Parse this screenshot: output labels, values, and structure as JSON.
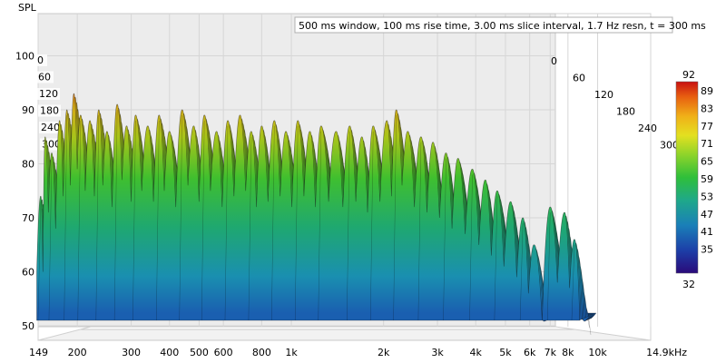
{
  "chart_data": {
    "type": "waterfall",
    "title": "",
    "ylabel": "SPL",
    "info": "500 ms window, 100 ms rise time, 3.00 ms slice interval, 1.7 Hz resn, t = 300 ms",
    "y_ticks": [
      "100",
      "90",
      "80",
      "70",
      "60",
      "50"
    ],
    "y_range": [
      47,
      101
    ],
    "x_range": [
      149,
      14900
    ],
    "x_scale": "log",
    "x_tick_labels": [
      {
        "f": 149,
        "label": "149"
      },
      {
        "f": 200,
        "label": "200"
      },
      {
        "f": 300,
        "label": "300"
      },
      {
        "f": 400,
        "label": "400"
      },
      {
        "f": 500,
        "label": "500"
      },
      {
        "f": 600,
        "label": "600"
      },
      {
        "f": 800,
        "label": "800"
      },
      {
        "f": 1000,
        "label": "1k"
      },
      {
        "f": 2000,
        "label": "2k"
      },
      {
        "f": 3000,
        "label": "3k"
      },
      {
        "f": 4000,
        "label": "4k"
      },
      {
        "f": 5000,
        "label": "5k"
      },
      {
        "f": 6000,
        "label": "6k"
      },
      {
        "f": 7000,
        "label": "7k"
      },
      {
        "f": 8000,
        "label": "8k"
      },
      {
        "f": 10000,
        "label": "10k"
      },
      {
        "f": 14900,
        "label": "14.9kHz"
      }
    ],
    "time_ticks_ms": [
      "0",
      "60",
      "120",
      "180",
      "240",
      "300"
    ],
    "time_range_ms": [
      0,
      300
    ],
    "colorbar": {
      "min": "32",
      "max": "92",
      "labels": [
        "89",
        "83",
        "77",
        "71",
        "65",
        "59",
        "53",
        "47",
        "41",
        "35"
      ],
      "colors": [
        "#2a0a7a",
        "#1c3fa8",
        "#1a7fb8",
        "#1fa88a",
        "#2fbf3a",
        "#8fd42a",
        "#e4e020",
        "#f0b018",
        "#e86010",
        "#c81010"
      ]
    },
    "front_slice_peaks": [
      {
        "f": 152,
        "spl": 74
      },
      {
        "f": 157,
        "spl": 85
      },
      {
        "f": 165,
        "spl": 82
      },
      {
        "f": 175,
        "spl": 88
      },
      {
        "f": 185,
        "spl": 90
      },
      {
        "f": 195,
        "spl": 93
      },
      {
        "f": 205,
        "spl": 89
      },
      {
        "f": 220,
        "spl": 88
      },
      {
        "f": 235,
        "spl": 90
      },
      {
        "f": 250,
        "spl": 86
      },
      {
        "f": 270,
        "spl": 91
      },
      {
        "f": 290,
        "spl": 87
      },
      {
        "f": 310,
        "spl": 89
      },
      {
        "f": 340,
        "spl": 87
      },
      {
        "f": 370,
        "spl": 89
      },
      {
        "f": 400,
        "spl": 86
      },
      {
        "f": 440,
        "spl": 90
      },
      {
        "f": 480,
        "spl": 87
      },
      {
        "f": 520,
        "spl": 89
      },
      {
        "f": 570,
        "spl": 86
      },
      {
        "f": 620,
        "spl": 88
      },
      {
        "f": 680,
        "spl": 89
      },
      {
        "f": 740,
        "spl": 86
      },
      {
        "f": 800,
        "spl": 87
      },
      {
        "f": 880,
        "spl": 88
      },
      {
        "f": 960,
        "spl": 86
      },
      {
        "f": 1050,
        "spl": 88
      },
      {
        "f": 1150,
        "spl": 86
      },
      {
        "f": 1250,
        "spl": 87
      },
      {
        "f": 1400,
        "spl": 86
      },
      {
        "f": 1550,
        "spl": 87
      },
      {
        "f": 1700,
        "spl": 85
      },
      {
        "f": 1850,
        "spl": 87
      },
      {
        "f": 2050,
        "spl": 88
      },
      {
        "f": 2200,
        "spl": 90
      },
      {
        "f": 2400,
        "spl": 86
      },
      {
        "f": 2650,
        "spl": 85
      },
      {
        "f": 2900,
        "spl": 84
      },
      {
        "f": 3200,
        "spl": 82
      },
      {
        "f": 3500,
        "spl": 81
      },
      {
        "f": 3900,
        "spl": 79
      },
      {
        "f": 4300,
        "spl": 77
      },
      {
        "f": 4700,
        "spl": 75
      },
      {
        "f": 5200,
        "spl": 73
      },
      {
        "f": 5700,
        "spl": 70
      },
      {
        "f": 6200,
        "spl": 65
      },
      {
        "f": 7000,
        "spl": 72
      },
      {
        "f": 7800,
        "spl": 71
      },
      {
        "f": 8400,
        "spl": 66
      }
    ],
    "floor_spl": 50,
    "grid": true
  }
}
